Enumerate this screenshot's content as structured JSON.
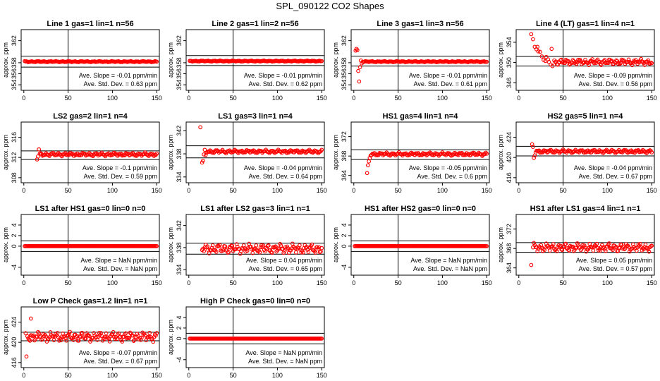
{
  "title": "SPL_090122  CO2 Shapes",
  "colors": {
    "points": "#ff0000",
    "axes": "#000000"
  },
  "chart_data": [
    {
      "type": "scatter",
      "title": "Line 1 gas=1 lin=1 n=56",
      "ylabel": "approx. ppm",
      "xlim": [
        -3,
        153
      ],
      "xticks": [
        0,
        50,
        100,
        150
      ],
      "ylim": [
        353,
        364
      ],
      "yticks": [
        354,
        356,
        358,
        362
      ],
      "hlines": [
        359.2,
        357.2
      ],
      "vline": 50,
      "pattern": {
        "start": 1,
        "end": 150,
        "base": 358.2,
        "amp": 0.1
      },
      "slope_text": "Ave. Slope =  -0.01  ppm/min",
      "std_text": "Ave. Std. Dev. =  0.63  ppm"
    },
    {
      "type": "scatter",
      "title": "Line 2 gas=1 lin=2 n=56",
      "ylabel": "approx. ppm",
      "xlim": [
        -3,
        153
      ],
      "xticks": [
        0,
        50,
        100,
        150
      ],
      "ylim": [
        353,
        364
      ],
      "yticks": [
        354,
        356,
        358,
        362
      ],
      "hlines": [
        359.3,
        357.5
      ],
      "vline": 50,
      "pattern": {
        "start": 1,
        "end": 150,
        "base": 358.3,
        "amp": 0.1
      },
      "slope_text": "Ave. Slope =  -0.01  ppm/min",
      "std_text": "Ave. Std. Dev. =  0.62  ppm"
    },
    {
      "type": "scatter",
      "title": "Line 3 gas=1 lin=3 n=56",
      "ylabel": "approx. ppm",
      "xlim": [
        -3,
        153
      ],
      "xticks": [
        0,
        50,
        100,
        150
      ],
      "ylim": [
        353,
        364
      ],
      "yticks": [
        354,
        356,
        358,
        362
      ],
      "hlines": [
        359.2,
        357.4
      ],
      "vline": 50,
      "pattern": {
        "start": 10,
        "end": 150,
        "base": 358.2,
        "amp": 0.1
      },
      "extra_points": [
        [
          2,
          360.2
        ],
        [
          3,
          360.5
        ],
        [
          4,
          360.3
        ],
        [
          5,
          356.5
        ],
        [
          6,
          354.6
        ],
        [
          7,
          357.2
        ],
        [
          8,
          358.4
        ],
        [
          9,
          357.9
        ]
      ],
      "slope_text": "Ave. Slope =  -0.01  ppm/min",
      "std_text": "Ave. Std. Dev. =  0.61  ppm"
    },
    {
      "type": "scatter",
      "title": "Line 4 (LT) gas=1 lin=4 n=1",
      "ylabel": "approx. ppm",
      "xlim": [
        -3,
        153
      ],
      "xticks": [
        0,
        50,
        100,
        150
      ],
      "ylim": [
        344.5,
        356.5
      ],
      "yticks": [
        346,
        350,
        354
      ],
      "hlines": [
        351.2,
        349.3
      ],
      "vline": 50,
      "pattern": {
        "start": 40,
        "end": 150,
        "base": 350.1,
        "amp": 0.6
      },
      "extra_points": [
        [
          14,
          355.6
        ],
        [
          16,
          354.6
        ],
        [
          18,
          353.1
        ],
        [
          20,
          352.6
        ],
        [
          21,
          353.1
        ],
        [
          22,
          352.2
        ],
        [
          24,
          352.1
        ],
        [
          26,
          351.2
        ],
        [
          28,
          350.5
        ],
        [
          30,
          350.3
        ],
        [
          31,
          351.1
        ],
        [
          33,
          350.6
        ],
        [
          34,
          350.1
        ],
        [
          36,
          349.6
        ],
        [
          37,
          352.7
        ],
        [
          38,
          349.3
        ]
      ],
      "slope_text": "Ave. Slope =  -0.09  ppm/min",
      "std_text": "Ave. Std. Dev. =  0.56  ppm"
    },
    {
      "type": "scatter",
      "title": "LS2 gas=2 lin=1 n=4",
      "ylabel": "approx. ppm",
      "xlim": [
        -3,
        153
      ],
      "xticks": [
        0,
        50,
        100,
        150
      ],
      "ylim": [
        307,
        319
      ],
      "yticks": [
        308,
        312,
        316
      ],
      "hlines": [
        313.3,
        311.6
      ],
      "vline": 50,
      "pattern": {
        "start": 18,
        "end": 150,
        "base": 312.6,
        "amp": 0.35
      },
      "extra_points": [
        [
          15,
          311.6
        ],
        [
          16,
          312.2
        ],
        [
          17,
          313.6
        ]
      ],
      "slope_text": "Ave. Slope =  -0.1  ppm/min",
      "std_text": "Ave. Std. Dev. =  0.59  ppm"
    },
    {
      "type": "scatter",
      "title": "LS1 gas=3 lin=1 n=4",
      "ylabel": "approx. ppm",
      "xlim": [
        -3,
        153
      ],
      "xticks": [
        0,
        50,
        100,
        150
      ],
      "ylim": [
        333,
        343.5
      ],
      "yticks": [
        334,
        338,
        342
      ],
      "hlines": [
        339.4,
        337.3
      ],
      "vline": 50,
      "pattern": {
        "start": 20,
        "end": 150,
        "base": 338.4,
        "amp": 0.3
      },
      "extra_points": [
        [
          13,
          342.6
        ],
        [
          15,
          336.5
        ],
        [
          16,
          336.8
        ],
        [
          17,
          337.9
        ],
        [
          18,
          338.7
        ],
        [
          19,
          337.8
        ]
      ],
      "slope_text": "Ave. Slope =  -0.04  ppm/min",
      "std_text": "Ave. Std. Dev. =  0.64  ppm"
    },
    {
      "type": "scatter",
      "title": "HS1 gas=4 lin=1 n=4",
      "ylabel": "approx. ppm",
      "xlim": [
        -3,
        153
      ],
      "xticks": [
        0,
        50,
        100,
        150
      ],
      "ylim": [
        362.5,
        375
      ],
      "yticks": [
        364,
        368,
        372
      ],
      "hlines": [
        369.3,
        367.3
      ],
      "vline": 50,
      "pattern": {
        "start": 20,
        "end": 150,
        "base": 368.4,
        "amp": 0.35
      },
      "extra_points": [
        [
          15,
          364.5
        ],
        [
          16,
          366.1
        ],
        [
          17,
          366.9
        ],
        [
          18,
          367.6
        ],
        [
          19,
          368.1
        ]
      ],
      "slope_text": "Ave. Slope =  -0.05  ppm/min",
      "std_text": "Ave. Std. Dev. =  0.6  ppm"
    },
    {
      "type": "scatter",
      "title": "HS2 gas=5 lin=1 n=4",
      "ylabel": "approx. ppm",
      "xlim": [
        -3,
        153
      ],
      "xticks": [
        0,
        50,
        100,
        150
      ],
      "ylim": [
        415,
        427
      ],
      "yticks": [
        416,
        420,
        424
      ],
      "hlines": [
        422.2,
        420.3
      ],
      "vline": 50,
      "pattern": {
        "start": 19,
        "end": 150,
        "base": 421.2,
        "amp": 0.35
      },
      "extra_points": [
        [
          15,
          422.6
        ],
        [
          16,
          422.1
        ],
        [
          17,
          419.9
        ],
        [
          18,
          420.4
        ]
      ],
      "slope_text": "Ave. Slope =  -0.04  ppm/min",
      "std_text": "Ave. Std. Dev. =  0.67  ppm"
    },
    {
      "type": "scatter",
      "title": "LS1 after HS1 gas=0 lin=0 n=0",
      "ylabel": "approx. ppm",
      "xlim": [
        -3,
        153
      ],
      "xticks": [
        0,
        50,
        100,
        150
      ],
      "ylim": [
        -5.5,
        6
      ],
      "yticks": [
        -4,
        0,
        2,
        4
      ],
      "hlines": [
        1,
        -1
      ],
      "vline": 50,
      "pattern": {
        "start": 1,
        "end": 150,
        "base": 0,
        "amp": 0
      },
      "slope_text": "Ave. Slope =   NaN  ppm/min",
      "std_text": "Ave. Std. Dev. =   NaN  ppm"
    },
    {
      "type": "scatter",
      "title": "LS1 after LS2 gas=3 lin=1 n=1",
      "ylabel": "approx. ppm",
      "xlim": [
        -3,
        153
      ],
      "xticks": [
        0,
        50,
        100,
        150
      ],
      "ylim": [
        333,
        344
      ],
      "yticks": [
        334,
        338,
        342
      ],
      "hlines": [
        338.8,
        336.8
      ],
      "vline": 50,
      "pattern": {
        "start": 15,
        "end": 150,
        "base": 337.8,
        "amp": 0.9
      },
      "slope_text": "Ave. Slope =  0.04  ppm/min",
      "std_text": "Ave. Std. Dev. =  0.65  ppm"
    },
    {
      "type": "scatter",
      "title": "HS1 after HS2 gas=0 lin=0 n=0",
      "ylabel": "approx. ppm",
      "xlim": [
        -3,
        153
      ],
      "xticks": [
        0,
        50,
        100,
        150
      ],
      "ylim": [
        -5.5,
        6
      ],
      "yticks": [
        -4,
        0,
        2,
        4
      ],
      "hlines": [
        1,
        -1
      ],
      "vline": 50,
      "pattern": {
        "start": 1,
        "end": 150,
        "base": 0,
        "amp": 0
      },
      "slope_text": "Ave. Slope =   NaN  ppm/min",
      "std_text": "Ave. Std. Dev. =   NaN  ppm"
    },
    {
      "type": "scatter",
      "title": "HS1 after LS1 gas=4 lin=1 n=1",
      "ylabel": "approx. ppm",
      "xlim": [
        -3,
        153
      ],
      "xticks": [
        0,
        50,
        100,
        150
      ],
      "ylim": [
        362.5,
        375
      ],
      "yticks": [
        364,
        368,
        372
      ],
      "hlines": [
        369.2,
        367.2
      ],
      "vline": 50,
      "pattern": {
        "start": 16,
        "end": 150,
        "base": 368.2,
        "amp": 0.9
      },
      "extra_points": [
        [
          14,
          364.6
        ]
      ],
      "slope_text": "Ave. Slope =  0.05  ppm/min",
      "std_text": "Ave. Std. Dev. =  0.57  ppm"
    },
    {
      "type": "scatter",
      "title": "Low P Check gas=1.2 lin=1 n=1",
      "ylabel": "approx. ppm",
      "xlim": [
        -3,
        153
      ],
      "xticks": [
        0,
        50,
        100,
        150
      ],
      "ylim": [
        415,
        427
      ],
      "yticks": [
        416,
        420,
        424
      ],
      "hlines": [
        422.0,
        420.3
      ],
      "vline": 50,
      "pattern": {
        "start": 5,
        "end": 150,
        "base": 421.1,
        "amp": 1.0
      },
      "extra_points": [
        [
          2,
          421.8
        ],
        [
          3,
          417.2
        ],
        [
          4,
          421.2
        ],
        [
          6,
          420.5
        ],
        [
          8,
          424.7
        ]
      ],
      "slope_text": "Ave. Slope =  -0.07  ppm/min",
      "std_text": "Ave. Std. Dev. =  0.67  ppm"
    },
    {
      "type": "scatter",
      "title": "High P Check gas=0 lin=0 n=0",
      "ylabel": "approx. ppm",
      "xlim": [
        -3,
        153
      ],
      "xticks": [
        0,
        50,
        100,
        150
      ],
      "ylim": [
        -5.5,
        6
      ],
      "yticks": [
        -4,
        0,
        2,
        4
      ],
      "hlines": [
        1,
        -1
      ],
      "vline": 50,
      "pattern": {
        "start": 1,
        "end": 150,
        "base": 0,
        "amp": 0
      },
      "slope_text": "Ave. Slope =   NaN  ppm/min",
      "std_text": "Ave. Std. Dev. =   NaN  ppm"
    }
  ]
}
